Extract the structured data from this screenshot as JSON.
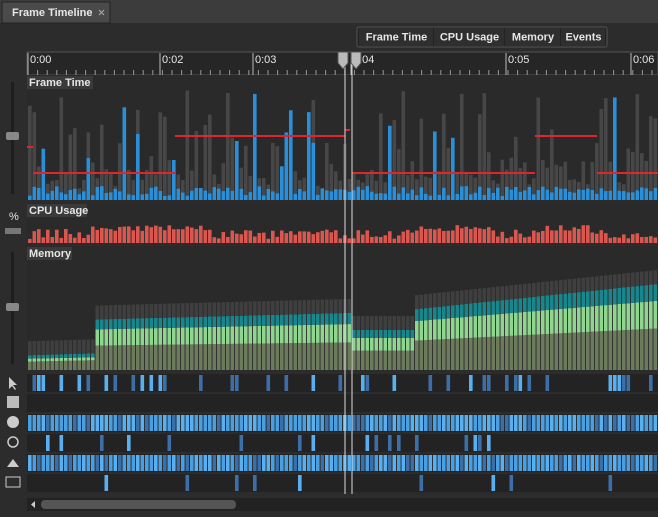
{
  "tab": {
    "title": "Frame Timeline"
  },
  "toolbar": {
    "buttons": [
      "Frame Time",
      "CPU Usage",
      "Memory",
      "Events"
    ]
  },
  "ruler": {
    "labels": [
      "0:00",
      "0:02",
      "0:03",
      "0:04",
      "0:05",
      "0:06"
    ]
  },
  "panels": {
    "frame_time": "Frame Time",
    "cpu_usage": "CPU Usage",
    "memory": "Memory"
  },
  "sidebar": {
    "percent": "%"
  }
}
